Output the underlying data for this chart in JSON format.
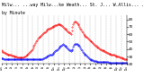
{
  "background_color": "#ffffff",
  "grid_color": "#888888",
  "red_color": "#ff0000",
  "blue_color": "#0000ff",
  "ylim": [
    20,
    85
  ],
  "xlim": [
    0,
    1440
  ],
  "yticks": [
    20,
    30,
    40,
    50,
    60,
    70,
    80
  ],
  "ytick_labels": [
    "20",
    "30",
    "40",
    "50",
    "60",
    "70",
    "80"
  ],
  "title_line1": "Milw... ...way Milw...ke Weath... St. J... W.Allis... ...2007",
  "title_line2": "by Minute",
  "title_fontsize": 3.5,
  "tick_fontsize": 3.0,
  "temp_data": [
    38,
    37,
    36,
    36,
    35,
    35,
    34,
    34,
    33,
    33,
    33,
    32,
    32,
    31,
    31,
    31,
    30,
    30,
    30,
    30,
    29,
    29,
    29,
    29,
    29,
    29,
    29,
    29,
    29,
    30,
    30,
    31,
    32,
    33,
    34,
    35,
    36,
    37,
    38,
    40,
    42,
    44,
    46,
    48,
    50,
    52,
    54,
    55,
    56,
    57,
    58,
    59,
    60,
    61,
    62,
    63,
    64,
    65,
    66,
    67,
    68,
    68,
    69,
    69,
    70,
    70,
    71,
    71,
    72,
    72,
    72,
    73,
    73,
    73,
    73,
    72,
    72,
    71,
    70,
    69,
    68,
    67,
    66,
    65,
    64,
    63,
    62,
    61,
    60,
    65,
    70,
    74,
    76,
    77,
    77,
    76,
    75,
    74,
    72,
    70,
    68,
    66,
    64,
    62,
    60,
    59,
    58,
    57,
    56,
    55,
    54,
    53,
    52,
    51,
    50,
    49,
    48,
    47,
    46,
    45,
    44,
    43,
    42,
    42,
    41,
    40,
    40,
    39,
    38,
    38,
    37,
    37,
    36,
    36,
    35,
    35,
    34,
    34,
    34,
    33,
    33,
    32,
    32,
    32,
    31,
    31,
    30,
    30,
    30,
    30,
    29,
    29,
    29,
    28,
    28,
    28,
    27,
    27,
    27,
    27
  ],
  "dew_data": [
    28,
    28,
    28,
    27,
    27,
    27,
    27,
    27,
    27,
    27,
    27,
    27,
    27,
    27,
    27,
    27,
    27,
    27,
    27,
    27,
    27,
    27,
    27,
    27,
    27,
    27,
    27,
    27,
    27,
    27,
    27,
    27,
    27,
    27,
    27,
    27,
    27,
    27,
    27,
    27,
    27,
    27,
    27,
    27,
    27,
    27,
    27,
    27,
    27,
    27,
    27,
    27,
    27,
    28,
    28,
    29,
    29,
    30,
    30,
    31,
    31,
    32,
    32,
    33,
    33,
    34,
    35,
    36,
    37,
    38,
    39,
    40,
    41,
    42,
    43,
    44,
    45,
    46,
    47,
    46,
    45,
    44,
    43,
    42,
    41,
    40,
    39,
    38,
    37,
    38,
    40,
    43,
    46,
    47,
    47,
    47,
    47,
    46,
    45,
    44,
    42,
    40,
    38,
    36,
    35,
    34,
    33,
    32,
    31,
    30,
    29,
    28,
    27,
    26,
    25,
    25,
    25,
    24,
    24,
    24,
    24,
    23,
    23,
    23,
    23,
    23,
    23,
    23,
    23,
    23,
    23,
    23,
    23,
    23,
    23,
    23,
    22,
    22,
    22,
    22,
    22,
    22,
    22,
    22,
    22,
    22,
    22,
    22,
    22,
    22,
    22,
    22,
    22,
    22,
    22,
    22,
    22,
    22,
    22,
    22
  ]
}
